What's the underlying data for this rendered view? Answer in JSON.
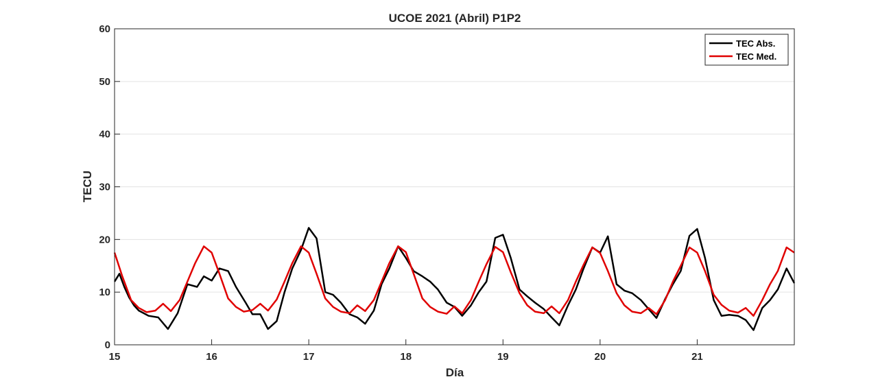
{
  "chart_data": {
    "type": "line",
    "title": "UCOE 2021 (Abril) P1P2",
    "xlabel": "Día",
    "ylabel": "TECU",
    "xlim": [
      15,
      22
    ],
    "ylim": [
      0,
      60
    ],
    "xticks": [
      15,
      16,
      17,
      18,
      19,
      20,
      21
    ],
    "yticks": [
      0,
      10,
      20,
      30,
      40,
      50,
      60
    ],
    "grid": "horizontal",
    "legend_position": "top-right",
    "series": [
      {
        "name": "TEC Abs.",
        "color": "#000000",
        "points": [
          [
            15.0,
            12
          ],
          [
            15.05,
            13.5
          ],
          [
            15.1,
            11
          ],
          [
            15.15,
            9
          ],
          [
            15.2,
            7.5
          ],
          [
            15.25,
            6.5
          ],
          [
            15.3,
            6
          ],
          [
            15.35,
            5.5
          ],
          [
            15.45,
            5.2
          ],
          [
            15.55,
            3
          ],
          [
            15.65,
            6
          ],
          [
            15.75,
            11.5
          ],
          [
            15.85,
            11
          ],
          [
            15.92,
            13
          ],
          [
            16.0,
            12.2
          ],
          [
            16.08,
            14.5
          ],
          [
            16.17,
            14
          ],
          [
            16.25,
            11
          ],
          [
            16.35,
            8
          ],
          [
            16.42,
            5.8
          ],
          [
            16.5,
            5.8
          ],
          [
            16.58,
            3
          ],
          [
            16.67,
            4.5
          ],
          [
            16.75,
            10
          ],
          [
            16.83,
            14.5
          ],
          [
            16.92,
            18
          ],
          [
            17.0,
            22.2
          ],
          [
            17.08,
            20.2
          ],
          [
            17.17,
            10
          ],
          [
            17.25,
            9.5
          ],
          [
            17.33,
            8
          ],
          [
            17.42,
            5.8
          ],
          [
            17.5,
            5.2
          ],
          [
            17.58,
            4
          ],
          [
            17.67,
            6.5
          ],
          [
            17.75,
            11.5
          ],
          [
            17.83,
            14.5
          ],
          [
            17.92,
            18.7
          ],
          [
            18.0,
            16.5
          ],
          [
            18.08,
            14
          ],
          [
            18.17,
            13
          ],
          [
            18.25,
            12
          ],
          [
            18.33,
            10.5
          ],
          [
            18.42,
            8
          ],
          [
            18.5,
            7.2
          ],
          [
            18.58,
            5.5
          ],
          [
            18.67,
            7.5
          ],
          [
            18.75,
            10
          ],
          [
            18.83,
            12
          ],
          [
            18.92,
            20.3
          ],
          [
            19.0,
            20.9
          ],
          [
            19.08,
            16.5
          ],
          [
            19.17,
            10.5
          ],
          [
            19.25,
            9.2
          ],
          [
            19.33,
            8
          ],
          [
            19.42,
            6.8
          ],
          [
            19.5,
            5.2
          ],
          [
            19.58,
            3.7
          ],
          [
            19.67,
            7.5
          ],
          [
            19.75,
            10.5
          ],
          [
            19.83,
            14.5
          ],
          [
            19.92,
            18.5
          ],
          [
            20.0,
            17.5
          ],
          [
            20.08,
            20.6
          ],
          [
            20.17,
            11.5
          ],
          [
            20.25,
            10.3
          ],
          [
            20.33,
            9.8
          ],
          [
            20.42,
            8.5
          ],
          [
            20.5,
            6.8
          ],
          [
            20.58,
            5.1
          ],
          [
            20.67,
            8.7
          ],
          [
            20.75,
            11.5
          ],
          [
            20.83,
            14
          ],
          [
            20.92,
            20.7
          ],
          [
            21.0,
            22
          ],
          [
            21.08,
            16.5
          ],
          [
            21.17,
            8.5
          ],
          [
            21.25,
            5.5
          ],
          [
            21.33,
            5.7
          ],
          [
            21.42,
            5.5
          ],
          [
            21.5,
            4.7
          ],
          [
            21.58,
            2.8
          ],
          [
            21.67,
            7
          ],
          [
            21.75,
            8.5
          ],
          [
            21.83,
            10.5
          ],
          [
            21.92,
            14.5
          ],
          [
            22.0,
            11.7
          ]
        ]
      },
      {
        "name": "TEC Med.",
        "color": "#e00000",
        "points": [
          [
            15.0,
            17.5
          ],
          [
            15.08,
            13
          ],
          [
            15.17,
            8.5
          ],
          [
            15.25,
            7
          ],
          [
            15.33,
            6.2
          ],
          [
            15.42,
            6.5
          ],
          [
            15.5,
            7.8
          ],
          [
            15.58,
            6.4
          ],
          [
            15.67,
            8.5
          ],
          [
            15.75,
            12
          ],
          [
            15.83,
            15.5
          ],
          [
            15.92,
            18.7
          ],
          [
            16.0,
            17.5
          ],
          [
            16.08,
            13.5
          ],
          [
            16.17,
            8.8
          ],
          [
            16.25,
            7.2
          ],
          [
            16.33,
            6.3
          ],
          [
            16.42,
            6.6
          ],
          [
            16.5,
            7.8
          ],
          [
            16.58,
            6.5
          ],
          [
            16.67,
            8.6
          ],
          [
            16.75,
            12
          ],
          [
            16.83,
            15.5
          ],
          [
            16.92,
            18.7
          ],
          [
            17.0,
            17.5
          ],
          [
            17.08,
            13.5
          ],
          [
            17.17,
            8.8
          ],
          [
            17.25,
            7.2
          ],
          [
            17.33,
            6.3
          ],
          [
            17.42,
            6
          ],
          [
            17.5,
            7.5
          ],
          [
            17.58,
            6.4
          ],
          [
            17.67,
            8.5
          ],
          [
            17.75,
            12
          ],
          [
            17.83,
            15.5
          ],
          [
            17.92,
            18.7
          ],
          [
            18.0,
            17.6
          ],
          [
            18.08,
            13.5
          ],
          [
            18.17,
            8.8
          ],
          [
            18.25,
            7.2
          ],
          [
            18.33,
            6.3
          ],
          [
            18.42,
            5.9
          ],
          [
            18.5,
            7.3
          ],
          [
            18.58,
            6
          ],
          [
            18.67,
            8.5
          ],
          [
            18.75,
            12
          ],
          [
            18.83,
            15.3
          ],
          [
            18.92,
            18.6
          ],
          [
            19.0,
            17.6
          ],
          [
            19.08,
            13.8
          ],
          [
            19.17,
            9.8
          ],
          [
            19.25,
            7.5
          ],
          [
            19.33,
            6.3
          ],
          [
            19.42,
            6
          ],
          [
            19.5,
            7.3
          ],
          [
            19.58,
            6
          ],
          [
            19.67,
            8.5
          ],
          [
            19.75,
            12
          ],
          [
            19.83,
            15.2
          ],
          [
            19.92,
            18.5
          ],
          [
            20.0,
            17.4
          ],
          [
            20.08,
            14
          ],
          [
            20.17,
            9.8
          ],
          [
            20.25,
            7.5
          ],
          [
            20.33,
            6.3
          ],
          [
            20.42,
            6
          ],
          [
            20.5,
            7
          ],
          [
            20.58,
            5.8
          ],
          [
            20.67,
            8.5
          ],
          [
            20.75,
            12
          ],
          [
            20.83,
            15
          ],
          [
            20.92,
            18.5
          ],
          [
            21.0,
            17.5
          ],
          [
            21.08,
            14
          ],
          [
            21.17,
            9.5
          ],
          [
            21.25,
            7.6
          ],
          [
            21.33,
            6.5
          ],
          [
            21.42,
            6.1
          ],
          [
            21.5,
            7
          ],
          [
            21.58,
            5.5
          ],
          [
            21.67,
            8.5
          ],
          [
            21.75,
            11.5
          ],
          [
            21.83,
            14
          ],
          [
            21.92,
            18.5
          ],
          [
            22.0,
            17.5
          ]
        ]
      }
    ]
  }
}
